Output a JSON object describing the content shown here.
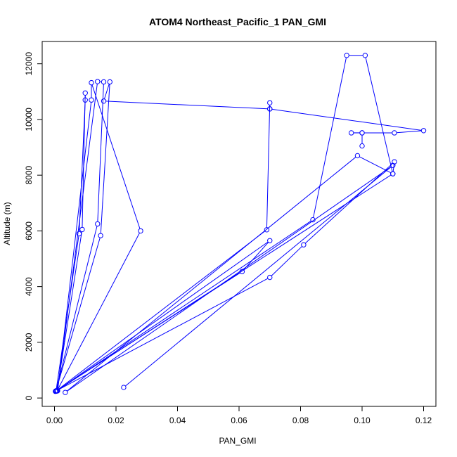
{
  "chart_data": {
    "type": "line",
    "title": "ATOM4 Northeast_Pacific_1 PAN_GMI",
    "xlabel": "PAN_GMI",
    "ylabel": "Altitude (m)",
    "xlim": [
      -0.004,
      0.124
    ],
    "ylim": [
      -300,
      12800
    ],
    "xticks": [
      0.0,
      0.02,
      0.04,
      0.06,
      0.08,
      0.1,
      0.12
    ],
    "xtick_labels": [
      "0.00",
      "0.02",
      "0.04",
      "0.06",
      "0.08",
      "0.10",
      "0.12"
    ],
    "yticks": [
      0,
      2000,
      4000,
      6000,
      8000,
      10000,
      12000
    ],
    "ytick_labels": [
      "0",
      "2000",
      "4000",
      "6000",
      "8000",
      "10000",
      "12000"
    ],
    "grid": false,
    "series": [
      {
        "color": "#0000ff",
        "marker": "open-circle",
        "points": [
          {
            "x": 0.0225,
            "y": 380
          },
          {
            "x": 0.11,
            "y": 8350
          },
          {
            "x": 0.0035,
            "y": 200
          },
          {
            "x": 0.0985,
            "y": 8700
          },
          {
            "x": 0.11,
            "y": 8050
          },
          {
            "x": 0.1105,
            "y": 8480
          },
          {
            "x": 0.081,
            "y": 5500
          },
          {
            "x": 0.07,
            "y": 4330
          },
          {
            "x": 0.0003,
            "y": 240
          },
          {
            "x": 0.061,
            "y": 4540
          },
          {
            "x": 0.07,
            "y": 5650
          },
          {
            "x": 0.0008,
            "y": 260
          },
          {
            "x": 0.084,
            "y": 6400
          },
          {
            "x": 0.095,
            "y": 12300
          },
          {
            "x": 0.101,
            "y": 12300
          },
          {
            "x": 0.11,
            "y": 8050
          },
          {
            "x": 0.0005,
            "y": 250
          },
          {
            "x": 0.069,
            "y": 6040
          },
          {
            "x": 0.07,
            "y": 10600
          },
          {
            "x": 0.07,
            "y": 10380
          },
          {
            "x": 0.016,
            "y": 10660
          },
          {
            "x": 0.018,
            "y": 11350
          },
          {
            "x": 0.015,
            "y": 5830
          },
          {
            "x": 0.0005,
            "y": 260
          },
          {
            "x": 0.014,
            "y": 6250
          },
          {
            "x": 0.016,
            "y": 11350
          },
          {
            "x": 0.014,
            "y": 11360
          },
          {
            "x": 0.001,
            "y": 260
          },
          {
            "x": 0.012,
            "y": 10700
          },
          {
            "x": 0.012,
            "y": 11320
          },
          {
            "x": 0.028,
            "y": 6000
          },
          {
            "x": 0.0008,
            "y": 250
          },
          {
            "x": 0.009,
            "y": 6050
          },
          {
            "x": 0.01,
            "y": 10950
          },
          {
            "x": 0.01,
            "y": 10700
          },
          {
            "x": 0.008,
            "y": 5900
          },
          {
            "x": 0.0005,
            "y": 250
          }
        ]
      },
      {
        "color": "#0000ff",
        "marker": "open-circle",
        "points": [
          {
            "x": 0.07,
            "y": 10380
          },
          {
            "x": 0.12,
            "y": 9600
          },
          {
            "x": 0.1105,
            "y": 9520
          },
          {
            "x": 0.1,
            "y": 9520
          },
          {
            "x": 0.0965,
            "y": 9520
          },
          {
            "x": 0.1,
            "y": 9520
          },
          {
            "x": 0.1,
            "y": 9050
          }
        ]
      }
    ]
  }
}
